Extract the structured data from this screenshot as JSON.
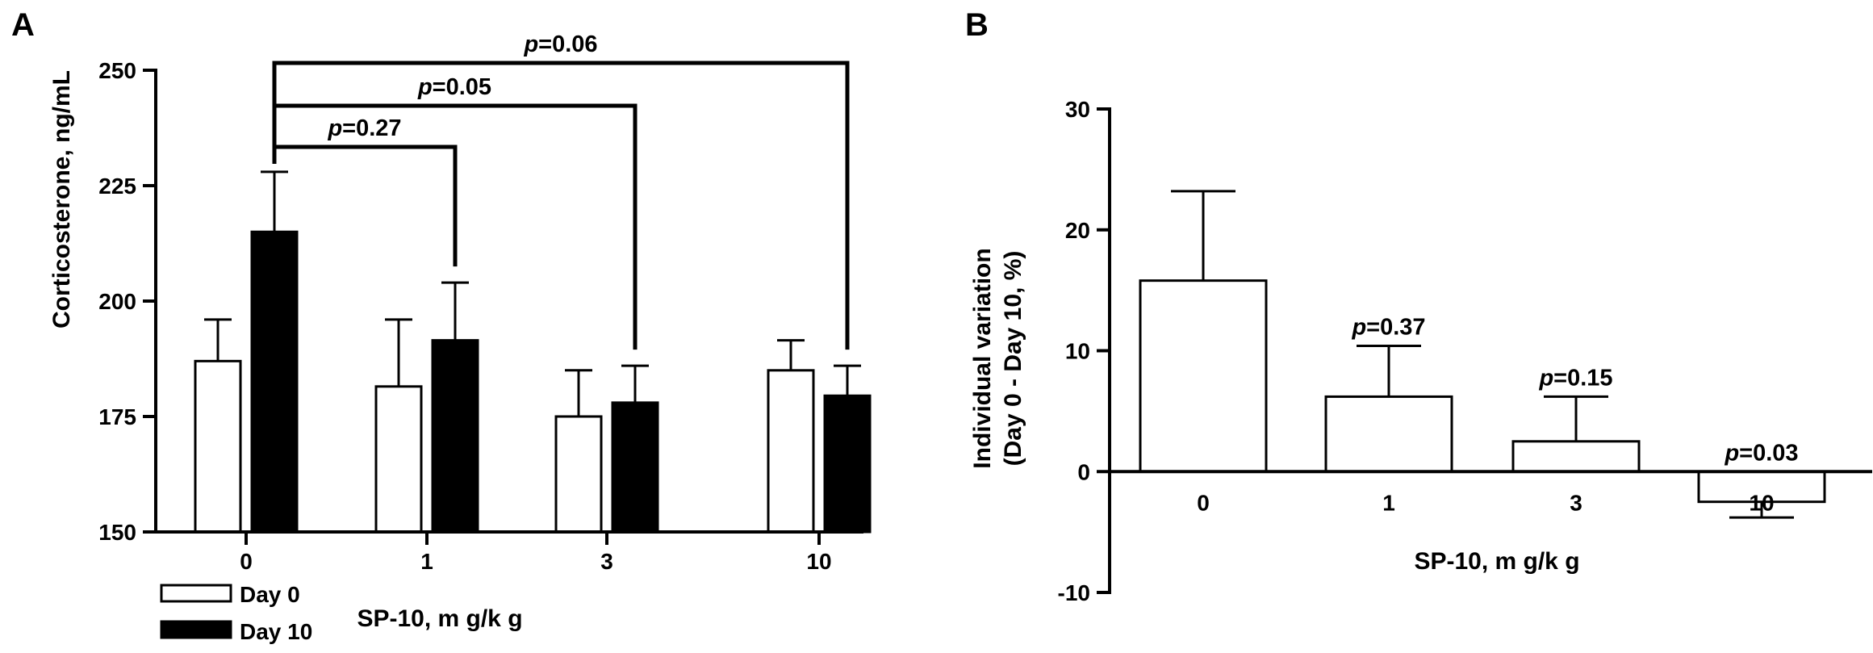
{
  "chart_data": [
    {
      "panel_label": "A",
      "type": "bar",
      "categories": [
        "0",
        "1",
        "3",
        "10"
      ],
      "series": [
        {
          "name": "Day 0",
          "color": "#ffffff",
          "values": [
            187,
            181.5,
            175,
            185
          ],
          "errors": [
            9,
            14.5,
            10,
            6.5
          ]
        },
        {
          "name": "Day 10",
          "color": "#000000",
          "values": [
            215,
            191.5,
            178,
            179.5
          ],
          "errors": [
            13,
            12.5,
            8,
            6.5
          ]
        }
      ],
      "ylabel": "Corticosterone, ng/mL",
      "xlabel": "SP-10, m g/k g",
      "ylim": [
        150,
        250
      ],
      "yticks": [
        "150",
        "175",
        "200",
        "225",
        "250"
      ],
      "legend_position": "bottom-left",
      "annotations": [
        {
          "from": "0",
          "to": "1",
          "prefix": "p",
          "text": "=0.27"
        },
        {
          "from": "0",
          "to": "3",
          "prefix": "p",
          "text": "=0.05"
        },
        {
          "from": "0",
          "to": "10",
          "prefix": "p",
          "text": "=0.06"
        }
      ]
    },
    {
      "panel_label": "B",
      "type": "bar",
      "categories": [
        "0",
        "1",
        "3",
        "10"
      ],
      "values": [
        15.8,
        6.2,
        2.5,
        -2.5
      ],
      "errors": [
        7.4,
        4.2,
        3.7,
        1.3
      ],
      "color": "#ffffff",
      "ylabel_line1": "Individual variation",
      "ylabel_line2": "(Day 0 - Day 10, %)",
      "xlabel": "SP-10, m g/k g",
      "ylim": [
        -10,
        30
      ],
      "yticks": [
        "-10",
        "0",
        "10",
        "20",
        "30"
      ],
      "annotations": [
        {
          "category": "1",
          "prefix": "p",
          "text": "=0.37"
        },
        {
          "category": "3",
          "prefix": "p",
          "text": "=0.15"
        },
        {
          "category": "10",
          "prefix": "p",
          "text": "=0.03"
        }
      ]
    }
  ]
}
